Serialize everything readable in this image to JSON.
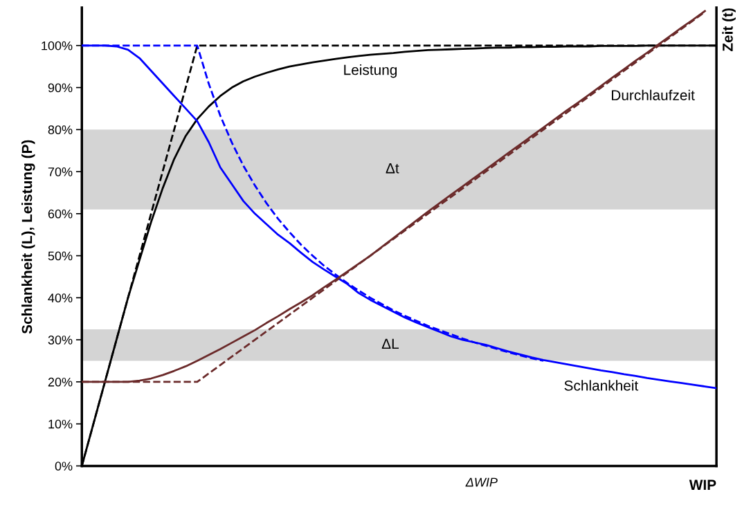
{
  "chart_data": {
    "type": "line",
    "xlabel": "WIP",
    "ylabel": "Schlankheit (L), Leistung (P)",
    "y2label": "Zeit (t)",
    "categories": [
      null,
      null,
      null,
      null,
      null,
      null,
      null,
      null,
      null,
      null,
      null,
      null,
      null,
      null,
      null,
      null,
      null,
      null,
      null,
      null,
      null,
      null,
      null,
      null,
      null,
      null,
      null,
      null,
      null,
      null,
      null,
      null,
      null,
      null,
      null,
      null,
      null,
      null,
      null,
      null,
      null,
      null,
      null,
      null,
      null,
      null,
      null,
      null,
      null,
      null,
      null,
      null,
      null,
      null,
      null,
      null
    ],
    "ylim": [
      0,
      109
    ],
    "yticks": [
      {
        "value": 0,
        "label": "0%"
      },
      {
        "value": 10,
        "label": "10%"
      },
      {
        "value": 20,
        "label": "20%"
      },
      {
        "value": 30,
        "label": "30%"
      },
      {
        "value": 40,
        "label": "40%"
      },
      {
        "value": 50,
        "label": "50%"
      },
      {
        "value": 60,
        "label": "60%"
      },
      {
        "value": 70,
        "label": "70%"
      },
      {
        "value": 80,
        "label": "80%"
      },
      {
        "value": 90,
        "label": "90%"
      },
      {
        "value": 100,
        "label": "100%"
      }
    ],
    "grid": false,
    "legend": false,
    "marker": "none",
    "series": [
      {
        "name": "Leistung",
        "color": "#000000",
        "line_style": "solid",
        "values": [
          0,
          10,
          20,
          30,
          40,
          49,
          58,
          66,
          73,
          78.5,
          82.5,
          85.5,
          88,
          90,
          91.5,
          92.6,
          93.5,
          94.3,
          95,
          95.5,
          96,
          96.4,
          96.8,
          97.2,
          97.5,
          97.8,
          98,
          98.2,
          98.5,
          98.7,
          98.9,
          99,
          99.1,
          99.2,
          99.3,
          99.4,
          99.5,
          99.5,
          99.6,
          99.6,
          99.7,
          99.7,
          99.8,
          99.8,
          99.8,
          99.9,
          99.9,
          99.9,
          99.9,
          100,
          100,
          100,
          100,
          100,
          100,
          100
        ]
      },
      {
        "color": "#000000",
        "line_style": "dashed",
        "values": [
          0,
          10,
          20,
          30,
          40,
          50,
          60,
          70,
          80,
          90,
          100,
          100,
          100,
          100,
          100,
          100,
          100,
          100,
          100,
          100,
          100,
          100,
          100,
          100,
          100,
          100,
          100,
          100,
          100,
          100,
          100,
          100,
          100,
          100,
          100,
          100,
          100,
          100,
          100,
          100,
          100,
          100,
          100,
          100,
          100,
          100,
          100,
          100,
          100,
          100,
          100,
          100,
          100,
          100,
          100,
          100
        ]
      },
      {
        "name": "Schlankheit",
        "color": "#0000ff",
        "line_style": "solid",
        "values": [
          100,
          100,
          100,
          99.8,
          99,
          97,
          94,
          91,
          88,
          85,
          82,
          77,
          71,
          67,
          63,
          60,
          57.5,
          55,
          53,
          50.7,
          48.5,
          46.7,
          45,
          43.3,
          41.1,
          39.5,
          38.1,
          36.7,
          35.3,
          34.1,
          33,
          31.9,
          30.8,
          30,
          29.4,
          28.8,
          28,
          27.2,
          26.5,
          25.8,
          25.2,
          24.7,
          24.2,
          23.7,
          23.2,
          22.7,
          22.3,
          21.8,
          21.4,
          20.9,
          20.5,
          20.1,
          19.7,
          19.3,
          18.9,
          18.5
        ]
      },
      {
        "color": "#0000ff",
        "line_style": "dashed",
        "values": [
          100,
          100,
          100,
          100,
          100,
          100,
          100,
          100,
          100,
          100,
          100,
          90.9,
          83.3,
          76.9,
          71.4,
          66.7,
          62.5,
          58.8,
          55.6,
          52.6,
          50,
          47.6,
          45.5,
          43.5,
          41.7,
          40,
          38.5,
          37,
          35.7,
          34.5,
          33.3,
          32.3,
          31.3,
          30.3,
          29.4,
          28.6,
          27.8,
          27,
          26.3,
          25.6,
          25,
          null,
          null,
          null,
          null,
          null,
          null,
          null,
          null,
          null,
          null,
          null,
          null,
          null,
          null,
          null
        ]
      },
      {
        "name": "Durchlaufzeit",
        "color": "#6b2a2a",
        "line_style": "solid",
        "values": [
          20,
          20,
          20,
          20,
          20,
          20.3,
          20.8,
          21.6,
          22.6,
          23.7,
          25,
          26.4,
          27.8,
          29.3,
          30.8,
          32.3,
          34,
          35.6,
          37.3,
          38.9,
          40.6,
          42.5,
          44.3,
          46.2,
          48.1,
          50,
          52.1,
          54.2,
          56.3,
          58.4,
          60.5,
          62.5,
          64.5,
          66.5,
          68.5,
          70.5,
          72.5,
          74.5,
          76.5,
          78.5,
          80.5,
          82.5,
          84.5,
          86.4,
          88.4,
          90.4,
          92.4,
          94.4,
          96.4,
          98.3,
          100.3,
          102.3,
          104.3,
          106.2,
          108.2,
          null
        ]
      },
      {
        "color": "#6b2a2a",
        "line_style": "dashed",
        "values": [
          20,
          20,
          20,
          20,
          20,
          20,
          20,
          20,
          20,
          20,
          20,
          22,
          24,
          26,
          28,
          30,
          32,
          34,
          36,
          38,
          40,
          42,
          44,
          46,
          48,
          50,
          52,
          54,
          56,
          58,
          60,
          62,
          64,
          66,
          68,
          70,
          72,
          74,
          76,
          78,
          80,
          82,
          84,
          86,
          88,
          90,
          92,
          94,
          96,
          98,
          100,
          102,
          104,
          106,
          108,
          null
        ]
      }
    ],
    "bands": [
      {
        "axis": "y",
        "from": 61,
        "to": 80,
        "label": "Δt",
        "color": "#bdbdbd"
      },
      {
        "axis": "y",
        "from": 25,
        "to": 32.5,
        "label": "ΔL",
        "color": "#bdbdbd"
      }
    ],
    "annotations": [
      "ΔWIP"
    ]
  }
}
